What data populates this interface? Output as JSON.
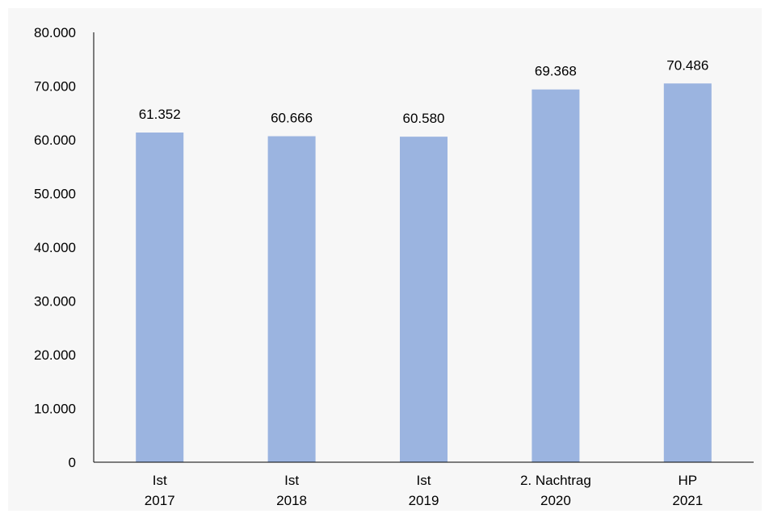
{
  "chart_data": {
    "type": "bar",
    "title": "",
    "xlabel": "",
    "ylabel": "",
    "categories": [
      [
        "Ist",
        "2017"
      ],
      [
        "Ist",
        "2018"
      ],
      [
        "Ist",
        "2019"
      ],
      [
        "2. Nachtrag",
        "2020"
      ],
      [
        "HP",
        "2021"
      ]
    ],
    "values": [
      61352,
      60666,
      60580,
      69368,
      70486
    ],
    "value_labels": [
      "61.352",
      "60.666",
      "60.580",
      "69.368",
      "70.486"
    ],
    "ylim": [
      0,
      80000
    ],
    "yticks": [
      0,
      10000,
      20000,
      30000,
      40000,
      50000,
      60000,
      70000,
      80000
    ],
    "ytick_labels": [
      "0",
      "10.000",
      "20.000",
      "30.000",
      "40.000",
      "50.000",
      "60.000",
      "70.000",
      "80.000"
    ],
    "grid": false,
    "legend": "none"
  },
  "colors": {
    "bar": "#9bb4e0",
    "plot_background": "#f7f7f7",
    "axis": "#000000"
  }
}
